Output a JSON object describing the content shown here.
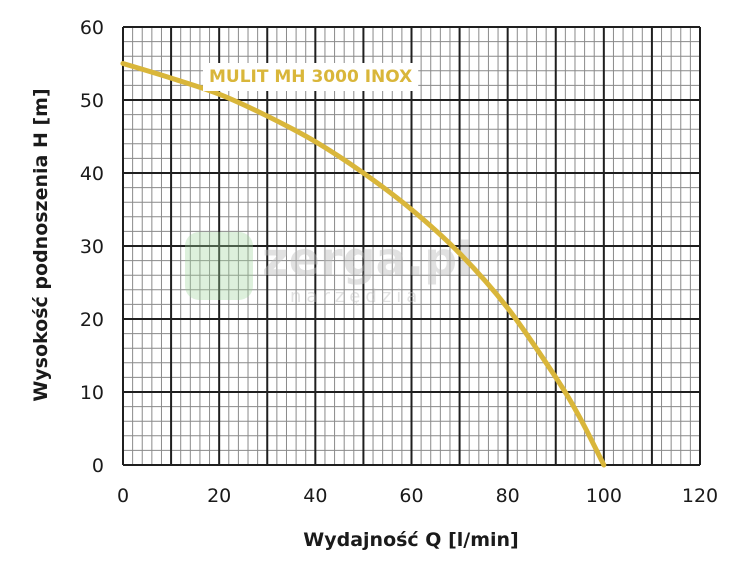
{
  "watermark": {
    "main": "zerga.pl",
    "sub": "narzędzia"
  },
  "chart_data": {
    "type": "line",
    "xlabel": "Wydajność Q [l/min]",
    "ylabel": "Wysokość podnoszenia H [m]",
    "xlim": [
      0,
      120
    ],
    "ylim": [
      0,
      60
    ],
    "xticks": [
      0,
      20,
      40,
      60,
      80,
      100,
      120
    ],
    "yticks": [
      0,
      10,
      20,
      30,
      40,
      50,
      60
    ],
    "grid": true,
    "series": [
      {
        "name": "MULIT MH 3000 INOX",
        "color": "#d9b63a",
        "x": [
          0,
          10,
          20,
          30,
          40,
          50,
          60,
          70,
          80,
          90,
          95,
          100
        ],
        "y": [
          55,
          53,
          50.8,
          47.8,
          44.3,
          40,
          35,
          29,
          21.5,
          12,
          6.5,
          0
        ]
      }
    ]
  }
}
